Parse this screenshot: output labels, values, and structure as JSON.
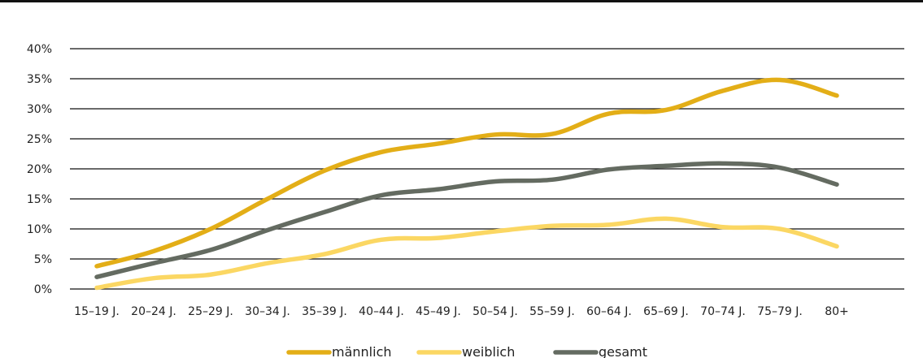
{
  "chart_data": {
    "type": "line",
    "categories": [
      "15–19 J.",
      "20–24 J.",
      "25–29 J.",
      "30–34 J.",
      "35–39 J.",
      "40–44 J.",
      "45–49 J.",
      "50–54 J.",
      "55–59 J.",
      "60–64 J.",
      "65–69 J.",
      "70–74 J.",
      "75–79 J.",
      "80+"
    ],
    "series": [
      {
        "name": "männlich",
        "color": "#e3ae17",
        "values": [
          3.8,
          6.3,
          10.0,
          15.0,
          19.7,
          22.8,
          24.2,
          25.7,
          25.8,
          29.2,
          29.8,
          33.0,
          34.8,
          32.2
        ]
      },
      {
        "name": "weiblich",
        "color": "#fbd763",
        "values": [
          0.2,
          1.8,
          2.4,
          4.3,
          5.8,
          8.2,
          8.5,
          9.6,
          10.5,
          10.7,
          11.7,
          10.3,
          10.0,
          7.1
        ]
      },
      {
        "name": "gesamt",
        "color": "#646b61",
        "values": [
          2.0,
          4.3,
          6.5,
          9.8,
          12.8,
          15.6,
          16.6,
          17.9,
          18.2,
          19.9,
          20.5,
          20.9,
          20.2,
          17.4
        ]
      }
    ],
    "yticks": [
      "0%",
      "5%",
      "10%",
      "15%",
      "20%",
      "25%",
      "30%",
      "35%",
      "40%"
    ],
    "ylim": [
      0,
      40
    ],
    "grid": "horizontal",
    "legend_position": "bottom-center"
  }
}
